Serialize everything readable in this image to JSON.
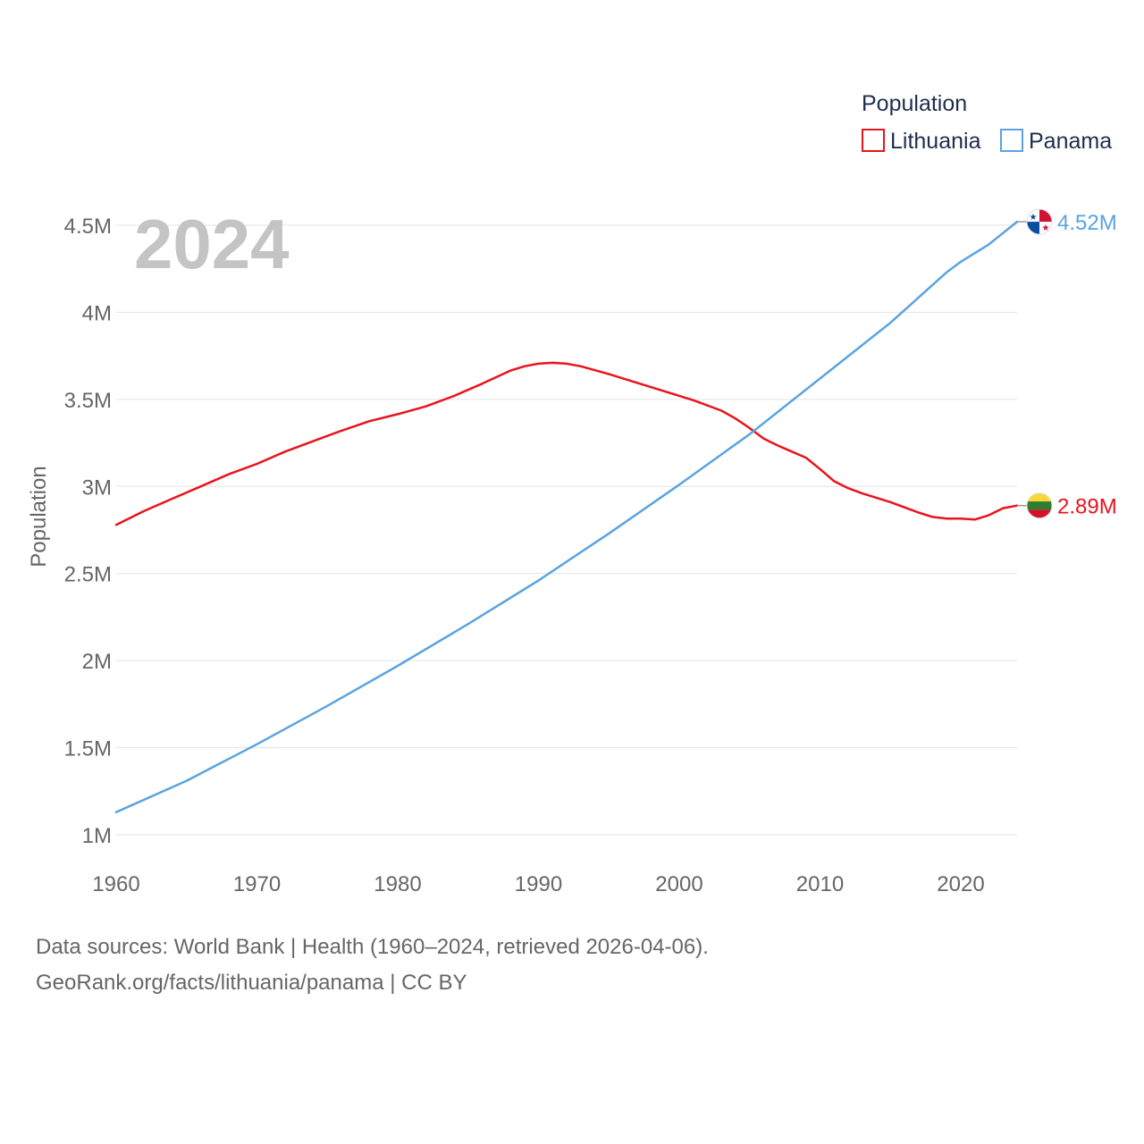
{
  "chart_data": {
    "type": "line",
    "title": "",
    "year_watermark": "2024",
    "ylabel": "Population",
    "xlabel": "",
    "xlim": [
      1960,
      2024
    ],
    "ylim": [
      1000000,
      4500000
    ],
    "x_ticks": [
      1960,
      1970,
      1980,
      1990,
      2000,
      2010,
      2020
    ],
    "x_tick_labels": [
      "1960",
      "1970",
      "1980",
      "1990",
      "2000",
      "2010",
      "2020"
    ],
    "y_ticks": [
      1000000,
      1500000,
      2000000,
      2500000,
      3000000,
      3500000,
      4000000,
      4500000
    ],
    "y_tick_labels": [
      "1M",
      "1.5M",
      "2M",
      "2.5M",
      "3M",
      "3.5M",
      "4M",
      "4.5M"
    ],
    "legend": {
      "title": "Population",
      "placement": "top-right"
    },
    "series": [
      {
        "name": "Lithuania",
        "color": "#e8141c",
        "end_label": "2.89M",
        "flag": "lithuania-flag",
        "x": [
          1960,
          1962,
          1964,
          1966,
          1968,
          1970,
          1972,
          1974,
          1976,
          1978,
          1980,
          1982,
          1984,
          1986,
          1988,
          1989,
          1990,
          1991,
          1992,
          1993,
          1995,
          1997,
          1999,
          2001,
          2003,
          2004,
          2005,
          2006,
          2007,
          2008,
          2009,
          2010,
          2011,
          2012,
          2013,
          2015,
          2017,
          2018,
          2019,
          2020,
          2021,
          2022,
          2023,
          2024
        ],
        "values": [
          2780000,
          2860000,
          2930000,
          3000000,
          3070000,
          3130000,
          3200000,
          3260000,
          3320000,
          3375000,
          3415000,
          3460000,
          3520000,
          3590000,
          3665000,
          3690000,
          3705000,
          3710000,
          3705000,
          3690000,
          3645000,
          3595000,
          3545000,
          3495000,
          3435000,
          3390000,
          3335000,
          3275000,
          3235000,
          3200000,
          3165000,
          3100000,
          3030000,
          2990000,
          2960000,
          2910000,
          2850000,
          2825000,
          2815000,
          2815000,
          2810000,
          2835000,
          2875000,
          2890000
        ]
      },
      {
        "name": "Panama",
        "color": "#5ba3e0",
        "end_label": "4.52M",
        "flag": "panama-flag",
        "x": [
          1960,
          1965,
          1970,
          1975,
          1980,
          1985,
          1990,
          1995,
          2000,
          2005,
          2010,
          2015,
          2019,
          2020,
          2022,
          2024
        ],
        "values": [
          1130000,
          1310000,
          1520000,
          1740000,
          1970000,
          2210000,
          2460000,
          2730000,
          3010000,
          3300000,
          3620000,
          3940000,
          4230000,
          4290000,
          4390000,
          4520000
        ]
      }
    ]
  },
  "footer": {
    "line1": "Data sources: World Bank | Health (1960–2024, retrieved 2026-04-06).",
    "line2": "GeoRank.org/facts/lithuania/panama | CC BY"
  }
}
